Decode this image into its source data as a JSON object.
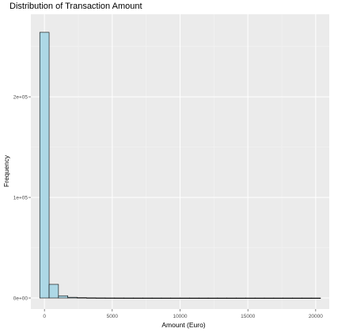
{
  "chart_data": {
    "type": "bar",
    "title": "Distribution of Transaction Amount",
    "xlabel": "Amount (Euro)",
    "ylabel": "Frequency",
    "xlim": [
      -1000,
      21000
    ],
    "ylim": [
      -11000,
      282000
    ],
    "x_ticks": [
      0,
      5000,
      10000,
      15000,
      20000
    ],
    "x_tick_labels": [
      "0",
      "5000",
      "10000",
      "15000",
      "20000"
    ],
    "y_ticks": [
      0,
      100000,
      200000
    ],
    "y_tick_labels": [
      "0e+00",
      "1e+05",
      "2e+05"
    ],
    "grid": true,
    "bin_width": 690,
    "bins": [
      {
        "x0": -345,
        "x1": 345,
        "count": 264000
      },
      {
        "x0": 345,
        "x1": 1035,
        "count": 13500
      },
      {
        "x0": 1035,
        "x1": 1725,
        "count": 2200
      },
      {
        "x0": 1725,
        "x1": 2415,
        "count": 700
      },
      {
        "x0": 2415,
        "x1": 3105,
        "count": 350
      },
      {
        "x0": 3105,
        "x1": 3795,
        "count": 180
      },
      {
        "x0": 3795,
        "x1": 4485,
        "count": 110
      },
      {
        "x0": 4485,
        "x1": 5175,
        "count": 70
      },
      {
        "x0": 5175,
        "x1": 5865,
        "count": 50
      },
      {
        "x0": 5865,
        "x1": 6555,
        "count": 35
      },
      {
        "x0": 6555,
        "x1": 7245,
        "count": 25
      },
      {
        "x0": 7245,
        "x1": 7935,
        "count": 20
      },
      {
        "x0": 7935,
        "x1": 8625,
        "count": 15
      },
      {
        "x0": 8625,
        "x1": 9315,
        "count": 12
      },
      {
        "x0": 9315,
        "x1": 10005,
        "count": 10
      },
      {
        "x0": 10005,
        "x1": 10695,
        "count": 8
      },
      {
        "x0": 10695,
        "x1": 11385,
        "count": 6
      },
      {
        "x0": 11385,
        "x1": 12075,
        "count": 5
      },
      {
        "x0": 12075,
        "x1": 12765,
        "count": 4
      },
      {
        "x0": 12765,
        "x1": 13455,
        "count": 3
      },
      {
        "x0": 13455,
        "x1": 14145,
        "count": 3
      },
      {
        "x0": 14145,
        "x1": 14835,
        "count": 2
      },
      {
        "x0": 14835,
        "x1": 15525,
        "count": 2
      },
      {
        "x0": 15525,
        "x1": 16215,
        "count": 2
      },
      {
        "x0": 16215,
        "x1": 16905,
        "count": 1
      },
      {
        "x0": 16905,
        "x1": 17595,
        "count": 1
      },
      {
        "x0": 17595,
        "x1": 18285,
        "count": 1
      },
      {
        "x0": 18285,
        "x1": 18975,
        "count": 1
      },
      {
        "x0": 18975,
        "x1": 19665,
        "count": 1
      },
      {
        "x0": 19665,
        "x1": 20355,
        "count": 2
      }
    ],
    "colors": {
      "bar_fill": "#add8e6",
      "bar_stroke": "#000000",
      "panel_background": "#ebebeb",
      "grid_major": "#ffffff",
      "grid_minor": "#f4f4f4"
    }
  }
}
